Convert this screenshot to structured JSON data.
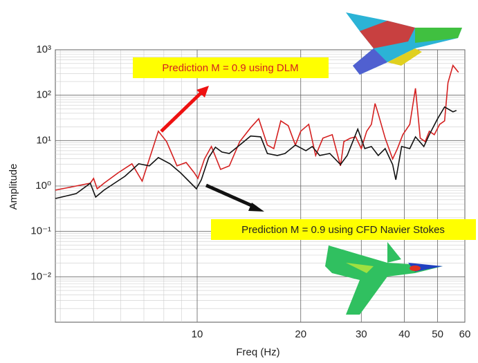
{
  "chart_data": {
    "type": "line",
    "xlabel": "Freq (Hz)",
    "ylabel": "Amplitude",
    "xscale": "log",
    "yscale": "log",
    "grid": true,
    "xlim": [
      3.87,
      60
    ],
    "ylim": [
      0.001,
      1000
    ],
    "xticks": [
      10,
      20,
      30,
      40,
      50,
      60
    ],
    "yticks": [
      {
        "value": 1000,
        "label": "10³"
      },
      {
        "value": 100,
        "label": "10²"
      },
      {
        "value": 10,
        "label": "10¹"
      },
      {
        "value": 1,
        "label": "10⁰"
      },
      {
        "value": 0.1,
        "label": "10⁻¹"
      },
      {
        "value": 0.01,
        "label": "10⁻²"
      }
    ],
    "annotations": [
      "Prediction M = 0.9 using DLM",
      "Prediction M = 0.9 using CFD Navier Stokes"
    ],
    "series": [
      {
        "color": "#d42020",
        "x": [
          3.87,
          4.89,
          5.0,
          5.12,
          5.36,
          5.89,
          6.46,
          6.92,
          7.26,
          7.71,
          8.15,
          8.74,
          9.29,
          9.81,
          10.05,
          10.5,
          11.0,
          11.7,
          12.4,
          13.3,
          14.3,
          15.1,
          16.0,
          16.7,
          17.5,
          18.4,
          19.3,
          20.0,
          21.1,
          22.1,
          23.2,
          24.7,
          26.1,
          26.7,
          27.9,
          28.9,
          30.0,
          31.1,
          32.1,
          32.9,
          33.6,
          35.2,
          37.0,
          38.2,
          39.6,
          41.5,
          43.1,
          44.5,
          46.0,
          47.3,
          48.9,
          50.7,
          52.4,
          53.6,
          55.4,
          57.5
        ],
        "values": [
          0.81,
          1.15,
          1.47,
          0.87,
          1.15,
          1.95,
          3.08,
          1.28,
          3.94,
          16.1,
          9.5,
          2.77,
          3.3,
          1.95,
          1.47,
          3.94,
          7.4,
          2.32,
          2.77,
          9.5,
          19.2,
          30.3,
          7.96,
          6.67,
          27.2,
          21.3,
          7.96,
          16.1,
          22.8,
          4.7,
          11.3,
          13.5,
          2.77,
          9.5,
          11.3,
          12.1,
          6.67,
          16.1,
          22.8,
          65.6,
          38.7,
          11.3,
          3.94,
          6.67,
          13.5,
          22.8,
          142,
          11.3,
          9.5,
          16.1,
          13.5,
          22.8,
          27.2,
          188,
          453,
          319
        ]
      },
      {
        "color": "#111111",
        "x": [
          3.87,
          4.45,
          4.89,
          5.07,
          5.36,
          6.17,
          6.76,
          7.26,
          7.71,
          8.34,
          8.95,
          9.37,
          9.95,
          10.28,
          10.8,
          11.3,
          11.8,
          12.4,
          13.3,
          14.3,
          15.3,
          16.0,
          17.1,
          18.0,
          19.3,
          20.7,
          21.6,
          22.7,
          24.3,
          26.1,
          27.3,
          29.3,
          30.7,
          32.1,
          33.6,
          35.2,
          37.0,
          37.8,
          39.3,
          41.5,
          43.1,
          45.6,
          47.3,
          50.0,
          52.4,
          55.4,
          56.7
        ],
        "values": [
          0.53,
          0.68,
          1.15,
          0.57,
          0.81,
          1.64,
          3.08,
          2.77,
          4.23,
          3.08,
          1.95,
          1.37,
          0.87,
          1.37,
          4.23,
          7.16,
          5.6,
          5.2,
          7.96,
          12.6,
          12.1,
          5.2,
          4.7,
          5.2,
          7.96,
          6.0,
          7.4,
          4.7,
          5.2,
          2.97,
          4.7,
          17.9,
          6.67,
          7.4,
          4.7,
          6.67,
          2.97,
          1.37,
          7.4,
          6.67,
          12.1,
          7.4,
          13.5,
          30.3,
          55.0,
          43.1,
          46.1
        ]
      }
    ]
  }
}
